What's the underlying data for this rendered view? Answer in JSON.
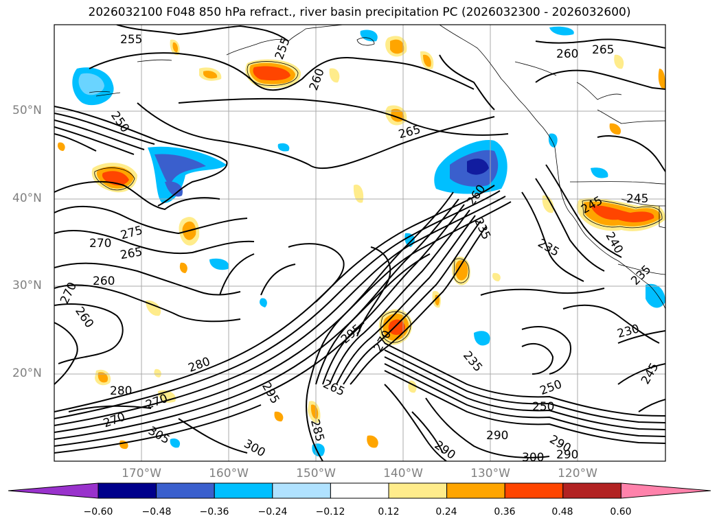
{
  "title": "2026032100 F048 850 hPa refract., river basin precipitation PC (2026032300 - 2026032600)",
  "lat_labels": [
    "50°N",
    "40°N",
    "30°N",
    "20°N"
  ],
  "lon_labels": [
    "170°W",
    "160°W",
    "150°W",
    "140°W",
    "130°W",
    "120°W"
  ],
  "contour_labels": [
    "255",
    "260",
    "265",
    "250",
    "265",
    "260",
    "275",
    "270",
    "265",
    "260",
    "270",
    "260",
    "280",
    "280",
    "270",
    "270",
    "305",
    "300",
    "295",
    "295",
    "270",
    "265",
    "285",
    "260",
    "235",
    "235",
    "240",
    "245",
    "245",
    "235",
    "230",
    "235",
    "250",
    "245",
    "250",
    "290",
    "290",
    "300",
    "290",
    "290",
    "255"
  ],
  "colorbar": {
    "ticks": [
      "−0.60",
      "−0.48",
      "−0.36",
      "−0.24",
      "−0.12",
      "0.12",
      "0.24",
      "0.36",
      "0.48",
      "0.60"
    ],
    "colors": [
      "#9932cc",
      "#00008b",
      "#3a5fcd",
      "#00bfff",
      "#b0e2ff",
      "#ffffff",
      "#ffec8b",
      "#ffa500",
      "#ff4500",
      "#b22222",
      "#ff82ab"
    ]
  }
}
